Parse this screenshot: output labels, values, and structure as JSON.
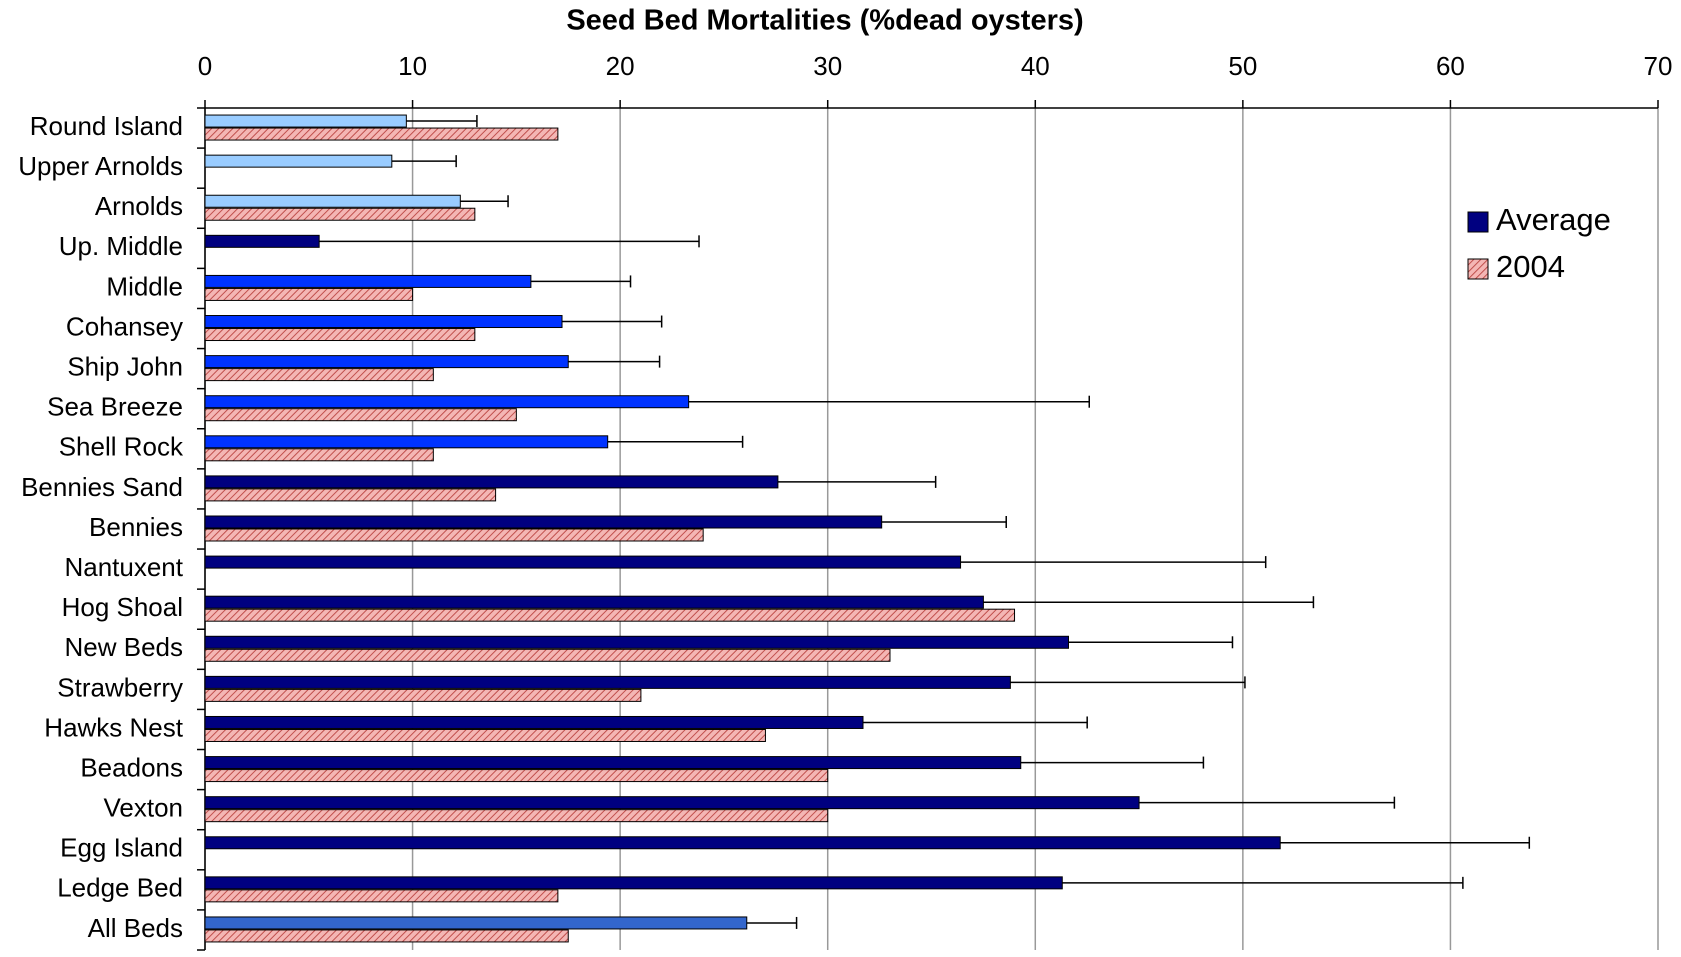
{
  "chart_data": {
    "type": "bar",
    "orientation": "horizontal",
    "title": "Seed Bed Mortalities (%dead oysters)",
    "categories": [
      "Round Island",
      "Upper Arnolds",
      "Arnolds",
      "Up. Middle",
      "Middle",
      "Cohansey",
      "Ship John",
      "Sea Breeze",
      "Shell Rock",
      "Bennies Sand",
      "Bennies",
      "Nantuxent",
      "Hog Shoal",
      "New Beds",
      "Strawberry",
      "Hawks Nest",
      "Beadons",
      "Vexton",
      "Egg Island",
      "Ledge Bed",
      "All Beds"
    ],
    "series": [
      {
        "name": "Average",
        "color": "#000080",
        "colors": [
          "#99ccff",
          "#99ccff",
          "#99ccff",
          "#000080",
          "#0033ff",
          "#0033ff",
          "#0033ff",
          "#0033ff",
          "#0033ff",
          "#000080",
          "#000080",
          "#000080",
          "#000080",
          "#000080",
          "#000080",
          "#000080",
          "#000080",
          "#000080",
          "#000080",
          "#000080",
          "#3366cc"
        ],
        "values": [
          9.7,
          9.0,
          12.3,
          5.5,
          15.7,
          17.2,
          17.5,
          23.3,
          19.4,
          27.6,
          32.6,
          36.4,
          37.5,
          41.6,
          38.8,
          31.7,
          39.3,
          45.0,
          51.8,
          41.3,
          26.1
        ],
        "errors": [
          3.4,
          3.1,
          2.3,
          18.3,
          4.8,
          4.8,
          4.4,
          19.3,
          6.5,
          7.6,
          6.0,
          14.7,
          15.9,
          7.9,
          11.3,
          10.8,
          8.8,
          12.3,
          12.0,
          19.3,
          2.4
        ]
      },
      {
        "name": "2004",
        "color": "#f4b6b4",
        "values": [
          17.0,
          null,
          13.0,
          null,
          10.0,
          13.0,
          11.0,
          15.0,
          11.0,
          14.0,
          24.0,
          null,
          39.0,
          33.0,
          21.0,
          27.0,
          30.0,
          30.0,
          null,
          17.0,
          17.5
        ]
      }
    ],
    "xlim": [
      0,
      70
    ],
    "xticks": [
      0,
      10,
      20,
      30,
      40,
      50,
      60,
      70
    ],
    "grid": true,
    "legend": "right"
  }
}
